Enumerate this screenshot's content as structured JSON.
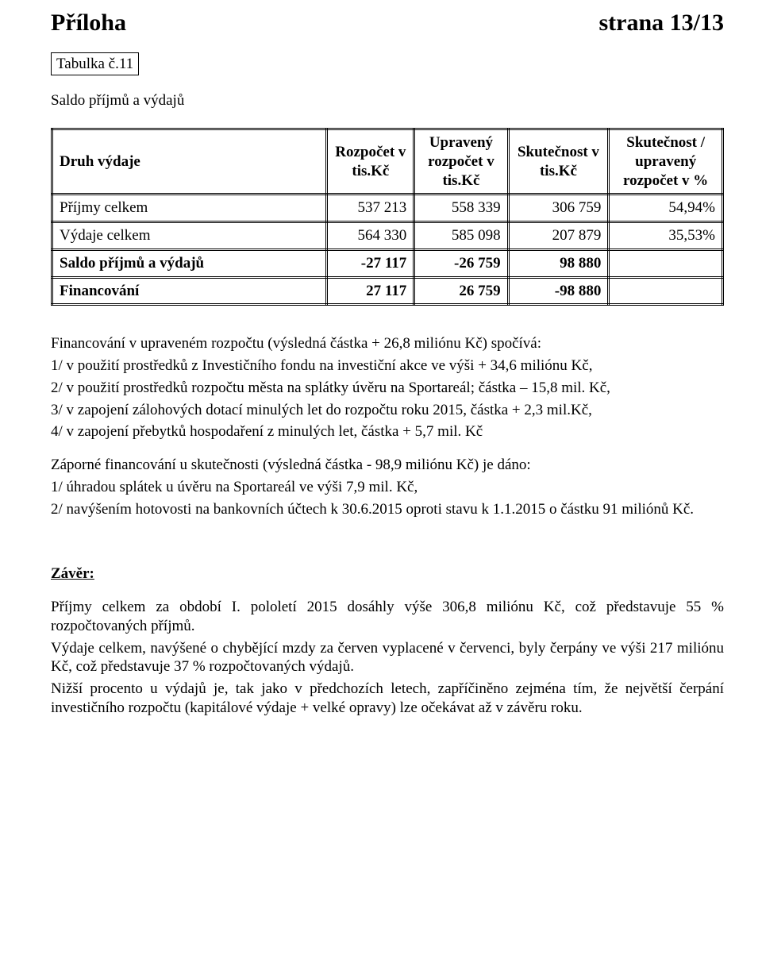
{
  "header": {
    "left": "Příloha",
    "right": "strana 13/13"
  },
  "table_label": "Tabulka č.11",
  "subtitle": "Saldo příjmů a výdajů",
  "table": {
    "columns": [
      "Druh výdaje",
      "Rozpočet v tis.Kč",
      "Upravený rozpočet v tis.Kč",
      "Skutečnost v tis.Kč",
      "Skutečnost / upravený rozpočet v %"
    ],
    "rows": [
      {
        "label": "Příjmy celkem",
        "c1": "537 213",
        "c2": "558 339",
        "c3": "306 759",
        "c4": "54,94%",
        "bold": false
      },
      {
        "label": "Výdaje celkem",
        "c1": "564 330",
        "c2": "585 098",
        "c3": "207 879",
        "c4": "35,53%",
        "bold": false
      },
      {
        "label": "Saldo příjmů a výdajů",
        "c1": "-27 117",
        "c2": "-26 759",
        "c3": "98 880",
        "c4": "",
        "bold": true
      },
      {
        "label": "Financování",
        "c1": "27 117",
        "c2": "26 759",
        "c3": "-98 880",
        "c4": "",
        "bold": true
      }
    ],
    "col_widths_pct": [
      41,
      13,
      14,
      15,
      17
    ],
    "border_style": "double",
    "font_size_pt": 14,
    "header_bold": true
  },
  "body": {
    "block1_intro": "Financování v upraveném rozpočtu (výsledná částka  + 26,8 miliónu Kč) spočívá:",
    "block1_items": [
      "1/  v použití prostředků z Investičního fondu na investiční akce ve výši  + 34,6 miliónu Kč,",
      "2/  v použití prostředků rozpočtu města na splátky úvěru na Sportareál; částka – 15,8 mil. Kč,",
      "3/  v zapojení zálohových dotací minulých let do rozpočtu roku 2015, částka + 2,3 mil.Kč,",
      "4/ v zapojení přebytků hospodaření z minulých let, částka + 5,7 mil. Kč"
    ],
    "block2_intro": "Záporné financování u skutečnosti (výsledná částka  - 98,9 miliónu Kč) je dáno:",
    "block2_items": [
      "1/   úhradou splátek u úvěru na Sportareál ve výši 7,9 mil. Kč,",
      "2/  navýšením hotovosti na bankovních účtech  k 30.6.2015 oproti stavu k 1.1.2015 o částku 91  miliónů Kč."
    ]
  },
  "zaver": {
    "heading": "Závěr:",
    "p1": "Příjmy celkem  za  období  I. pololetí 2015  dosáhly výše  306,8  miliónu Kč, což  představuje 55 %  rozpočtovaných  příjmů.",
    "p2": "Výdaje celkem, navýšené o chybějící mzdy za červen vyplacené v červenci, byly  čerpány  ve výši  217 miliónu Kč, což představuje 37 % rozpočtovaných výdajů.",
    "p3": "Nižší procento u výdajů je, tak jako v předchozích letech, zapříčiněno zejména tím, že největší čerpání investičního rozpočtu (kapitálové výdaje + velké opravy) lze očekávat až v závěru roku."
  }
}
